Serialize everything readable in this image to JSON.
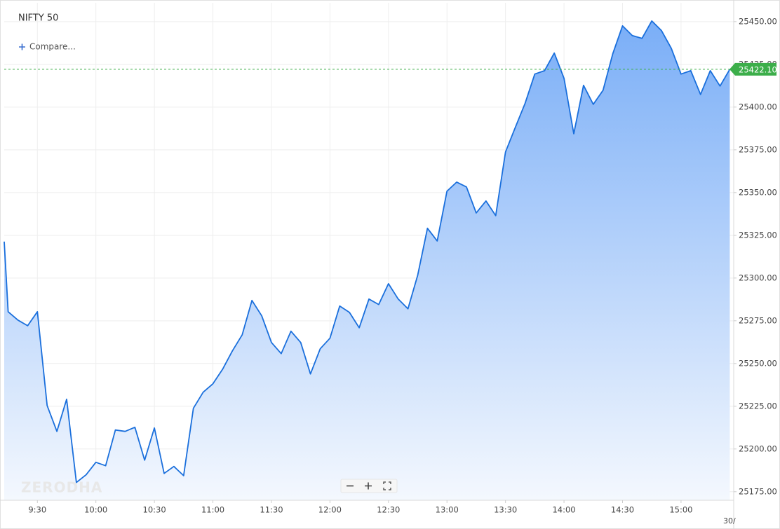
{
  "title": "NIFTY 50",
  "compare": "Compare...",
  "watermark": "ZERODHA",
  "date_marker": "30/",
  "chart_data": {
    "type": "area",
    "color": "#1a6fdc",
    "grid": true,
    "x": [
      553,
      555,
      560,
      565,
      570,
      575,
      580,
      585,
      590,
      595,
      600,
      605,
      610,
      615,
      620,
      625,
      630,
      635,
      640,
      645,
      650,
      655,
      660,
      665,
      670,
      675,
      680,
      685,
      690,
      695,
      700,
      705,
      710,
      715,
      720,
      725,
      730,
      735,
      740,
      745,
      750,
      755,
      760,
      765,
      770,
      775,
      780,
      785,
      790,
      795,
      800,
      805,
      810,
      815,
      820,
      825,
      830,
      835,
      840,
      845,
      850,
      855,
      860,
      865,
      870,
      875,
      880,
      885,
      890,
      895,
      900,
      905,
      910,
      915,
      920,
      925
    ],
    "values": [
      25321.3,
      25280.3,
      25275.4,
      25272.1,
      25280.3,
      25225.4,
      25210.3,
      25229.1,
      25180.4,
      25184.9,
      25192.2,
      25190.2,
      25211.1,
      25210.3,
      25212.7,
      25193.5,
      25212.3,
      25185.7,
      25189.8,
      25184.4,
      25223.8,
      25233.2,
      25238.1,
      25246.7,
      25257.4,
      25266.8,
      25286.9,
      25277.9,
      25262.3,
      25255.8,
      25268.9,
      25262.3,
      25243.9,
      25258.6,
      25264.8,
      25283.6,
      25279.9,
      25270.9,
      25287.7,
      25284.5,
      25296.7,
      25287.7,
      25282.0,
      25301.7,
      25329.1,
      25321.7,
      25350.8,
      25356.1,
      25353.3,
      25338.1,
      25345.1,
      25336.5,
      25373.8,
      25388.1,
      25402.1,
      25419.3,
      25421.3,
      25431.6,
      25416.8,
      25384.4,
      25412.7,
      25401.6,
      25409.8,
      25431.2,
      25447.5,
      25441.8,
      25440.2,
      25450.4,
      25444.7,
      25434.4,
      25419.3,
      25421.3,
      25407.4,
      25421.3,
      25412.3,
      25422.1
    ],
    "xlim": [
      553,
      927
    ],
    "xticks": [
      {
        "value": 570,
        "label": "9:30"
      },
      {
        "value": 600,
        "label": "10:00"
      },
      {
        "value": 630,
        "label": "10:30"
      },
      {
        "value": 660,
        "label": "11:00"
      },
      {
        "value": 690,
        "label": "11:30"
      },
      {
        "value": 720,
        "label": "12:00"
      },
      {
        "value": 750,
        "label": "12:30"
      },
      {
        "value": 780,
        "label": "13:00"
      },
      {
        "value": 810,
        "label": "13:30"
      },
      {
        "value": 840,
        "label": "14:00"
      },
      {
        "value": 870,
        "label": "14:30"
      },
      {
        "value": 900,
        "label": "15:00"
      }
    ],
    "ylim": [
      25170,
      25461
    ],
    "yticks": [
      {
        "value": 25175,
        "label": "25175.00"
      },
      {
        "value": 25200,
        "label": "25200.00"
      },
      {
        "value": 25225,
        "label": "25225.00"
      },
      {
        "value": 25250,
        "label": "25250.00"
      },
      {
        "value": 25275,
        "label": "25275.00"
      },
      {
        "value": 25300,
        "label": "25300.00"
      },
      {
        "value": 25325,
        "label": "25325.00"
      },
      {
        "value": 25350,
        "label": "25350.00"
      },
      {
        "value": 25375,
        "label": "25375.00"
      },
      {
        "value": 25400,
        "label": "25400.00"
      },
      {
        "value": 25425,
        "label": "25425.00"
      },
      {
        "value": 25450,
        "label": "25450.00"
      }
    ],
    "last_price": {
      "value": 25422.1,
      "label": "25422.10",
      "color": "#3cae4a"
    }
  }
}
